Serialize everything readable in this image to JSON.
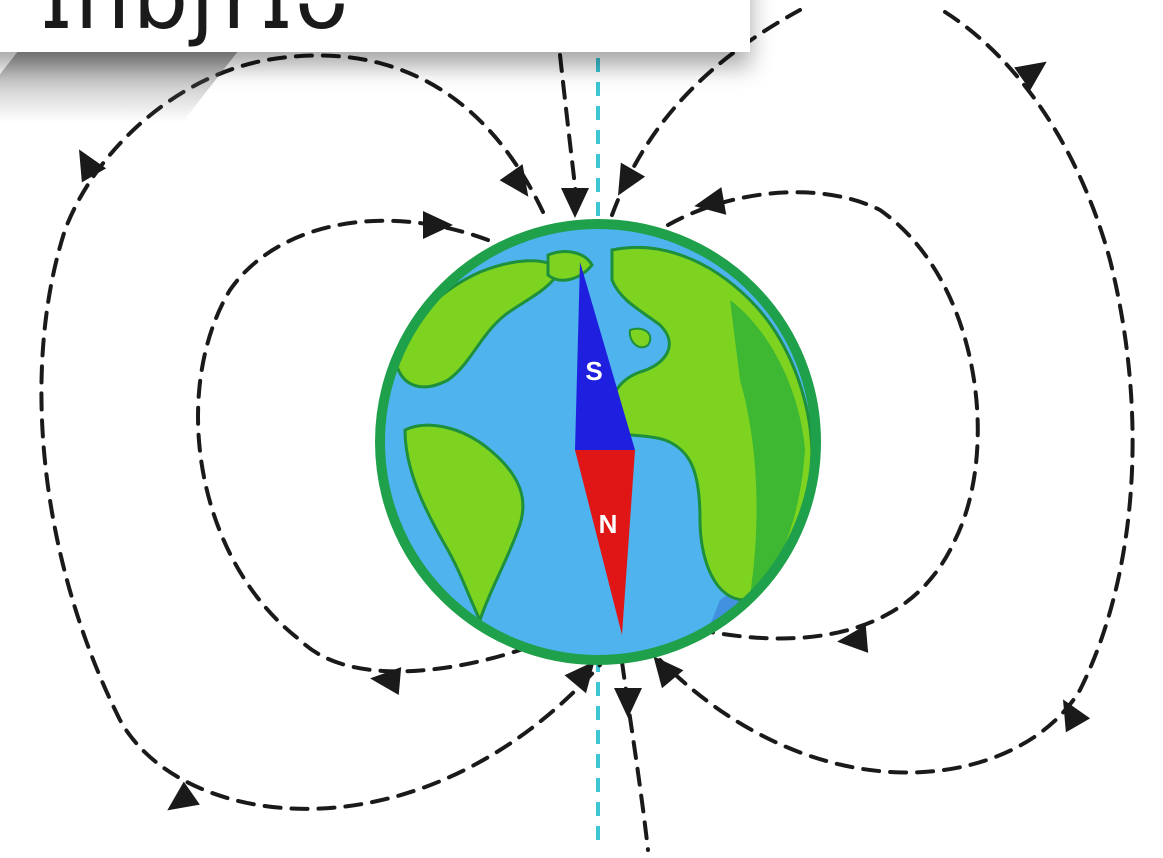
{
  "title": {
    "text": "ˇ ɪnɒʃrɪᴗ"
  },
  "needle": {
    "south_label": "S",
    "north_label": "N"
  },
  "colors": {
    "ocean": "#4fb3ee",
    "land": "#7ed321",
    "land_dark": "#3eb832",
    "globe_rim": "#1fa04a",
    "needle_south": "#1f1fe0",
    "needle_north": "#e01616",
    "field_lines": "#1a1a1a",
    "axis": "#3cc6d6"
  },
  "icons": {
    "arrowhead": "triangle-arrowhead-icon"
  }
}
